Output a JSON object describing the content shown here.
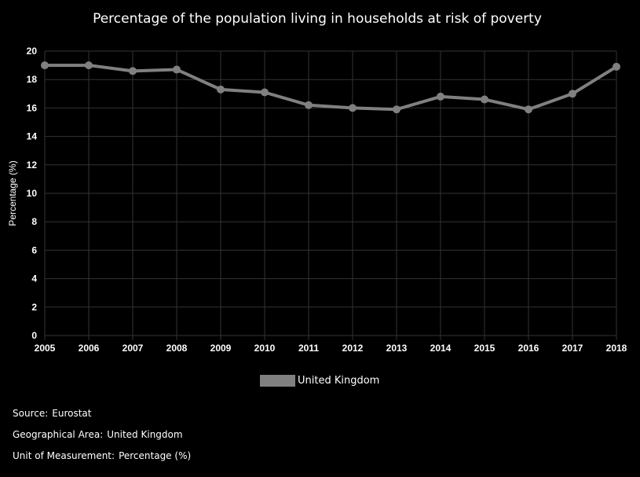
{
  "chart_data": {
    "type": "line",
    "title": "Percentage of the population living in households at risk of poverty",
    "xlabel": "",
    "ylabel": "Percentage (%)",
    "categories": [
      "2005",
      "2006",
      "2007",
      "2008",
      "2009",
      "2010",
      "2011",
      "2012",
      "2013",
      "2014",
      "2015",
      "2016",
      "2017",
      "2018"
    ],
    "yticks": [
      "0",
      "2",
      "4",
      "6",
      "8",
      "10",
      "12",
      "14",
      "16",
      "18",
      "20"
    ],
    "ylim": [
      0,
      20
    ],
    "grid": true,
    "legend_position": "bottom",
    "series": [
      {
        "name": "United Kingdom",
        "color": "#808080",
        "values": [
          19.0,
          19.0,
          18.6,
          18.7,
          17.3,
          17.1,
          16.2,
          16.0,
          15.9,
          16.8,
          16.6,
          15.9,
          17.0,
          18.9
        ]
      }
    ]
  },
  "footer": {
    "source_label": "Source:",
    "source_value": "Eurostat",
    "area_label": "Geographical Area:",
    "area_value": "United Kingdom",
    "unit_label": "Unit of Measurement:",
    "unit_value": "Percentage (%)"
  },
  "colors": {
    "background": "#000000",
    "grid": "#333333",
    "text": "#ffffff",
    "series": "#808080"
  }
}
